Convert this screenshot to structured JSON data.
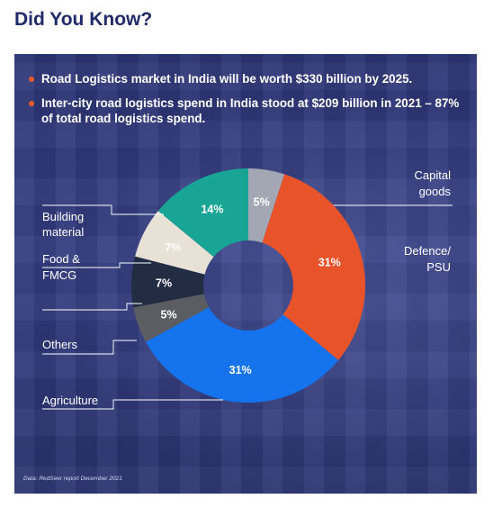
{
  "heading": "Did You Know?",
  "bullets": [
    "Road Logistics market in India will be worth $330 billion by 2025.",
    "Inter-city road logistics spend in India stood at $209 billion in 2021 – 87% of total road logistics spend."
  ],
  "source": "Data: RedSeer report December 2021",
  "colors": {
    "heading": "#1f2a6b",
    "panel": "#2c3573",
    "bullet_dot": "#ea5a2a"
  },
  "chart_data": {
    "type": "pie",
    "donut": true,
    "title": "",
    "values_unit": "%",
    "slices": [
      {
        "label": "Capital goods",
        "label_lines": [
          "Capital",
          "goods"
        ],
        "value": 5,
        "value_label": "5%",
        "color": "#a2a7b3",
        "label_color": "#ffffff"
      },
      {
        "label": "Defence/ PSU",
        "label_lines": [
          "Defence/",
          "PSU"
        ],
        "value": 31,
        "value_label": "31%",
        "color": "#e8532a",
        "label_color": "#ffffff"
      },
      {
        "label": "Agriculture",
        "label_lines": [
          "Agriculture"
        ],
        "value": 31,
        "value_label": "31%",
        "color": "#1573ee",
        "label_color": "#ffffff"
      },
      {
        "label": "Others",
        "label_lines": [
          "Others"
        ],
        "value": 5,
        "value_label": "5%",
        "color": "#5b5d63",
        "label_color": "#ffffff"
      },
      {
        "label": "",
        "label_lines": [],
        "value": 7,
        "value_label": "7%",
        "color": "#222d43",
        "label_color": "#ffffff"
      },
      {
        "label": "Food & FMCG",
        "label_lines": [
          "Food &",
          "FMCG"
        ],
        "value": 7,
        "value_label": "7%",
        "color": "#e8e2d6",
        "label_color": "#ffffff"
      },
      {
        "label": "Building material",
        "label_lines": [
          "Building",
          "material"
        ],
        "value": 14,
        "value_label": "14%",
        "color": "#18a596",
        "label_color": "#ffffff"
      }
    ]
  }
}
